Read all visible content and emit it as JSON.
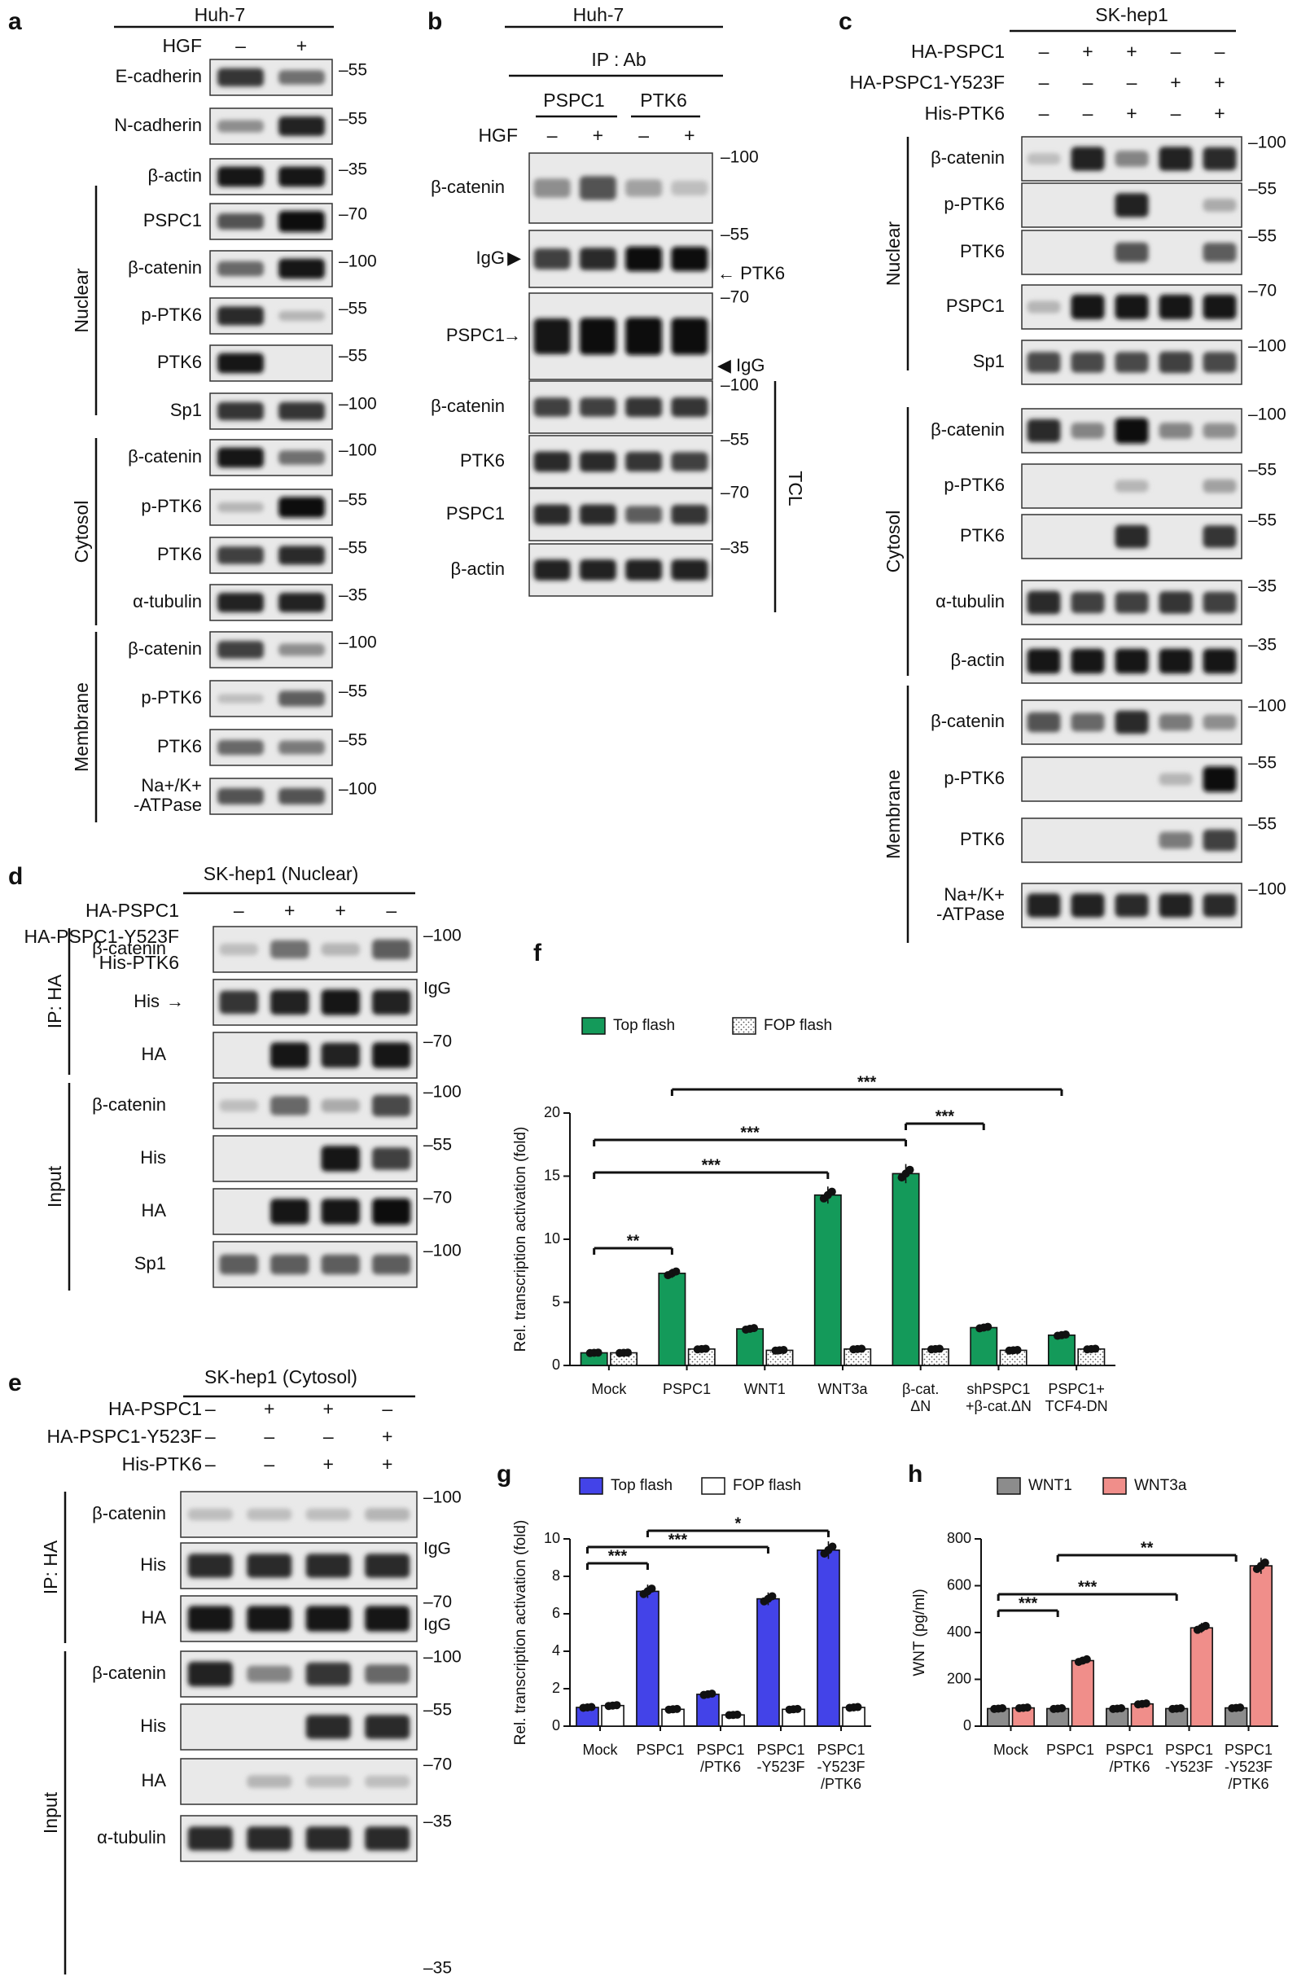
{
  "figure": {
    "panels": {
      "a": {
        "label": "a",
        "cell_line": "Huh-7",
        "condition_rows": [
          {
            "label": "HGF",
            "values": [
              "–",
              "+"
            ]
          }
        ],
        "blots": [
          {
            "label": "E-cadherin",
            "mw": "–55",
            "lanes": [
              0.75,
              0.45
            ],
            "section": ""
          },
          {
            "label": "N-cadherin",
            "mw": "–55",
            "lanes": [
              0.3,
              0.85
            ],
            "section": ""
          },
          {
            "label": "β-actin",
            "mw": "–35",
            "lanes": [
              0.9,
              0.9
            ],
            "section": ""
          },
          {
            "label": "PSPC1",
            "mw": "–70",
            "lanes": [
              0.6,
              0.98
            ],
            "section": "Nuclear"
          },
          {
            "label": "β-catenin",
            "mw": "–100",
            "lanes": [
              0.5,
              0.9
            ],
            "section": "Nuclear"
          },
          {
            "label": "p-PTK6",
            "mw": "–55",
            "lanes": [
              0.8,
              0.1
            ],
            "section": "Nuclear"
          },
          {
            "label": "PTK6",
            "mw": "–55",
            "lanes": [
              0.9,
              0.0
            ],
            "section": "Nuclear"
          },
          {
            "label": "Sp1",
            "mw": "–100",
            "lanes": [
              0.75,
              0.75
            ],
            "section": "Nuclear"
          },
          {
            "label": "β-catenin",
            "mw": "–100",
            "lanes": [
              0.9,
              0.45
            ],
            "section": "Cytosol"
          },
          {
            "label": "p-PTK6",
            "mw": "–55",
            "lanes": [
              0.1,
              0.95
            ],
            "section": "Cytosol"
          },
          {
            "label": "PTK6",
            "mw": "–55",
            "lanes": [
              0.7,
              0.8
            ],
            "section": "Cytosol"
          },
          {
            "label": "α-tubulin",
            "mw": "–35",
            "lanes": [
              0.85,
              0.85
            ],
            "section": "Cytosol"
          },
          {
            "label": "β-catenin",
            "mw": "–100",
            "lanes": [
              0.7,
              0.3
            ],
            "section": "Membrane"
          },
          {
            "label": "p-PTK6",
            "mw": "–55",
            "lanes": [
              0.05,
              0.55
            ],
            "section": "Membrane"
          },
          {
            "label": "PTK6",
            "mw": "–55",
            "lanes": [
              0.5,
              0.4
            ],
            "section": "Membrane"
          },
          {
            "label": "Na+/K+\n-ATPase",
            "mw": "–100",
            "lanes": [
              0.6,
              0.6
            ],
            "section": "Membrane"
          }
        ],
        "sections": [
          "Nuclear",
          "Cytosol",
          "Membrane"
        ]
      },
      "b": {
        "label": "b",
        "cell_line": "Huh-7",
        "ip_label": "IP : Ab",
        "groups": [
          "PSPC1",
          "PTK6"
        ],
        "condition_rows": [
          {
            "label": "HGF",
            "values": [
              "–",
              "+",
              "–",
              "+"
            ]
          }
        ],
        "blots": [
          {
            "label": "β-catenin",
            "mw": "–100",
            "lanes": [
              0.3,
              0.6,
              0.2,
              0.05
            ]
          },
          {
            "label": "IgG",
            "mw": "–55",
            "lanes": [
              0.7,
              0.8,
              0.98,
              0.95
            ],
            "marker": "▶",
            "right_note": "PTK6"
          },
          {
            "label": "PSPC1",
            "mw": "–70",
            "lanes": [
              0.9,
              0.95,
              0.98,
              0.95
            ],
            "marker": "→",
            "right_note": "IgG"
          },
          {
            "label": "β-catenin",
            "mw": "–100",
            "lanes": [
              0.7,
              0.7,
              0.75,
              0.75
            ]
          },
          {
            "label": "PTK6",
            "mw": "–55",
            "lanes": [
              0.8,
              0.8,
              0.75,
              0.7
            ]
          },
          {
            "label": "PSPC1",
            "mw": "–70",
            "lanes": [
              0.8,
              0.8,
              0.55,
              0.75
            ]
          },
          {
            "label": "β-actin",
            "mw": "–35",
            "lanes": [
              0.85,
              0.85,
              0.85,
              0.85
            ]
          }
        ],
        "side_label": "TCL",
        "ptk6_arrow_note": "← PTK6",
        "igg_arrow_note": "◀ IgG"
      },
      "c": {
        "label": "c",
        "cell_line": "SK-hep1",
        "condition_rows": [
          {
            "label": "HA-PSPC1",
            "values": [
              "–",
              "+",
              "+",
              "–",
              "–"
            ]
          },
          {
            "label": "HA-PSPC1-Y523F",
            "values": [
              "–",
              "–",
              "–",
              "+",
              "+"
            ]
          },
          {
            "label": "His-PTK6",
            "values": [
              "–",
              "–",
              "+",
              "–",
              "+"
            ]
          }
        ],
        "blots": [
          {
            "label": "β-catenin",
            "mw": "–100",
            "lanes": [
              0.05,
              0.85,
              0.35,
              0.85,
              0.8
            ],
            "section": "Nuclear"
          },
          {
            "label": "p-PTK6",
            "mw": "–55",
            "lanes": [
              0.0,
              0.0,
              0.85,
              0.0,
              0.15
            ],
            "section": "Nuclear"
          },
          {
            "label": "PTK6",
            "mw": "–55",
            "lanes": [
              0.0,
              0.0,
              0.6,
              0.0,
              0.55
            ],
            "section": "Nuclear"
          },
          {
            "label": "PSPC1",
            "mw": "–70",
            "lanes": [
              0.1,
              0.9,
              0.9,
              0.9,
              0.9
            ],
            "section": "Nuclear"
          },
          {
            "label": "Sp1",
            "mw": "–100",
            "lanes": [
              0.65,
              0.65,
              0.65,
              0.7,
              0.65
            ],
            "section": "Nuclear"
          },
          {
            "label": "β-catenin",
            "mw": "–100",
            "lanes": [
              0.8,
              0.35,
              0.95,
              0.35,
              0.3
            ],
            "section": "Cytosol"
          },
          {
            "label": "p-PTK6",
            "mw": "–55",
            "lanes": [
              0.0,
              0.0,
              0.1,
              0.0,
              0.2
            ],
            "section": "Cytosol"
          },
          {
            "label": "PTK6",
            "mw": "–55",
            "lanes": [
              0.0,
              0.0,
              0.8,
              0.0,
              0.75
            ],
            "section": "Cytosol"
          },
          {
            "label": "α-tubulin",
            "mw": "–35",
            "lanes": [
              0.8,
              0.7,
              0.7,
              0.75,
              0.7
            ],
            "section": "Cytosol"
          },
          {
            "label": "β-actin",
            "mw": "–35",
            "lanes": [
              0.9,
              0.9,
              0.9,
              0.9,
              0.9
            ],
            "section": "Cytosol"
          },
          {
            "label": "β-catenin",
            "mw": "–100",
            "lanes": [
              0.6,
              0.5,
              0.8,
              0.4,
              0.3
            ],
            "section": "Membrane"
          },
          {
            "label": "p-PTK6",
            "mw": "–55",
            "lanes": [
              0.0,
              0.0,
              0.0,
              0.1,
              0.95
            ],
            "section": "Membrane"
          },
          {
            "label": "PTK6",
            "mw": "–55",
            "lanes": [
              0.0,
              0.0,
              0.0,
              0.4,
              0.7
            ],
            "section": "Membrane"
          },
          {
            "label": "Na+/K+\n-ATPase",
            "mw": "–100",
            "lanes": [
              0.85,
              0.85,
              0.8,
              0.85,
              0.8
            ],
            "section": "Membrane"
          }
        ],
        "sections": [
          "Nuclear",
          "Cytosol",
          "Membrane"
        ]
      },
      "d": {
        "label": "d",
        "title": "SK-hep1 (Nuclear)",
        "condition_rows": [
          {
            "label": "HA-PSPC1",
            "values": [
              "–",
              "+",
              "+",
              "–"
            ]
          },
          {
            "label": "HA-PSPC1-Y523F",
            "values": [
              "–",
              "–",
              "–",
              "+"
            ]
          },
          {
            "label": "His-PTK6",
            "values": [
              "–",
              "–",
              "+",
              "+"
            ]
          }
        ],
        "blots": [
          {
            "label": "β-catenin",
            "mw": "–100",
            "lanes": [
              0.05,
              0.45,
              0.1,
              0.55
            ],
            "section": "IP: HA"
          },
          {
            "label": "His",
            "mw": "IgG",
            "lanes": [
              0.75,
              0.85,
              0.9,
              0.85
            ],
            "section": "IP: HA",
            "marker": "→"
          },
          {
            "label": "HA",
            "mw": "–70",
            "lanes": [
              0.0,
              0.9,
              0.85,
              0.9
            ],
            "section": "IP: HA"
          },
          {
            "label": "β-catenin",
            "mw": "–100",
            "lanes": [
              0.05,
              0.5,
              0.15,
              0.65
            ],
            "section": "Input"
          },
          {
            "label": "His",
            "mw": "–55",
            "lanes": [
              0.0,
              0.0,
              0.9,
              0.7
            ],
            "section": "Input"
          },
          {
            "label": "HA",
            "mw": "–70",
            "lanes": [
              0.0,
              0.9,
              0.9,
              0.95
            ],
            "section": "Input"
          },
          {
            "label": "Sp1",
            "mw": "–100",
            "lanes": [
              0.55,
              0.55,
              0.55,
              0.55
            ],
            "section": "Input"
          }
        ],
        "sections": [
          "IP: HA",
          "Input"
        ]
      },
      "e": {
        "label": "e",
        "title": "SK-hep1 (Cytosol)",
        "condition_rows": [
          {
            "label": "HA-PSPC1",
            "values": [
              "–",
              "+",
              "+",
              "–"
            ]
          },
          {
            "label": "HA-PSPC1-Y523F",
            "values": [
              "–",
              "–",
              "–",
              "+"
            ]
          },
          {
            "label": "His-PTK6",
            "values": [
              "–",
              "–",
              "+",
              "+"
            ]
          }
        ],
        "blots": [
          {
            "label": "β-catenin",
            "mw": "–100",
            "lanes": [
              0.05,
              0.05,
              0.05,
              0.1
            ],
            "section": "IP: HA"
          },
          {
            "label": "His",
            "mw": "IgG",
            "lanes": [
              0.8,
              0.8,
              0.8,
              0.8
            ],
            "section": "IP: HA"
          },
          {
            "label": "HA",
            "mw": "–70\nIgG",
            "lanes": [
              0.9,
              0.9,
              0.9,
              0.9
            ],
            "section": "IP: HA"
          },
          {
            "label": "β-catenin",
            "mw": "–100",
            "lanes": [
              0.85,
              0.35,
              0.75,
              0.5
            ],
            "section": "Input"
          },
          {
            "label": "His",
            "mw": "–55",
            "lanes": [
              0.0,
              0.0,
              0.8,
              0.8
            ],
            "section": "Input"
          },
          {
            "label": "HA",
            "mw": "–70",
            "lanes": [
              0.0,
              0.1,
              0.05,
              0.05
            ],
            "section": "Input"
          },
          {
            "label": "α-tubulin",
            "mw": "–35",
            "lanes": [
              0.8,
              0.8,
              0.8,
              0.8
            ],
            "section": "Input"
          }
        ],
        "sections": [
          "IP: HA",
          "Input"
        ],
        "bottom_mw": "–35"
      }
    },
    "colors": {
      "green": "#149a5a",
      "blue": "#4343e8",
      "salmon": "#f08e8a",
      "gray": "#8c8c8c",
      "white": "#ffffff"
    }
  },
  "chart_data": [
    {
      "panel": "f",
      "type": "bar",
      "categories": [
        "Mock",
        "PSPC1",
        "WNT1",
        "WNT3a",
        "β-cat.\nΔN",
        "shPSPC1\n+β-cat.ΔN",
        "PSPC1+\nTCF4-DN"
      ],
      "series": [
        {
          "name": "Top flash",
          "values": [
            1.0,
            7.3,
            2.9,
            13.5,
            15.2,
            3.0,
            2.4
          ]
        },
        {
          "name": "FOP flash",
          "values": [
            1.0,
            1.3,
            1.2,
            1.3,
            1.3,
            1.2,
            1.3
          ]
        }
      ],
      "ylabel": "Rel. transcription activation (fold)",
      "ylim": [
        0,
        20
      ],
      "yticks": [
        0,
        5,
        10,
        15,
        20
      ],
      "legend": "top",
      "significance": [
        {
          "from": 0,
          "to": 1,
          "label": "**"
        },
        {
          "from": 0,
          "to": 3,
          "label": "***"
        },
        {
          "from": 0,
          "to": 4,
          "label": "***"
        },
        {
          "from": 4,
          "to": 5,
          "label": "***"
        },
        {
          "from": 1,
          "to": 6,
          "label": "***"
        }
      ]
    },
    {
      "panel": "g",
      "type": "bar",
      "categories": [
        "Mock",
        "PSPC1",
        "PSPC1\n/PTK6",
        "PSPC1\n-Y523F",
        "PSPC1\n-Y523F\n/PTK6"
      ],
      "series": [
        {
          "name": "Top flash",
          "values": [
            1.0,
            7.2,
            1.7,
            6.8,
            9.4
          ]
        },
        {
          "name": "FOP flash",
          "values": [
            1.1,
            0.9,
            0.6,
            0.9,
            1.0
          ]
        }
      ],
      "ylabel": "Rel. transcription activation (fold)",
      "ylim": [
        0,
        10
      ],
      "yticks": [
        0,
        2,
        4,
        6,
        8,
        10
      ],
      "legend": "top",
      "significance": [
        {
          "from": 0,
          "to": 1,
          "label": "***"
        },
        {
          "from": 0,
          "to": 3,
          "label": "***"
        },
        {
          "from": 1,
          "to": 4,
          "label": "*"
        }
      ]
    },
    {
      "panel": "h",
      "type": "bar",
      "categories": [
        "Mock",
        "PSPC1",
        "PSPC1\n/PTK6",
        "PSPC1\n-Y523F",
        "PSPC1\n-Y523F\n/PTK6"
      ],
      "series": [
        {
          "name": "WNT1",
          "values": [
            75,
            75,
            75,
            75,
            78
          ]
        },
        {
          "name": "WNT3a",
          "values": [
            78,
            280,
            95,
            420,
            685
          ]
        }
      ],
      "ylabel": "WNT (pg/ml)",
      "ylim": [
        0,
        800
      ],
      "yticks": [
        0,
        200,
        400,
        600,
        800
      ],
      "legend": "top",
      "significance": [
        {
          "from": 0,
          "to": 1,
          "label": "***"
        },
        {
          "from": 0,
          "to": 3,
          "label": "***"
        },
        {
          "from": 1,
          "to": 4,
          "label": "**"
        }
      ]
    }
  ]
}
